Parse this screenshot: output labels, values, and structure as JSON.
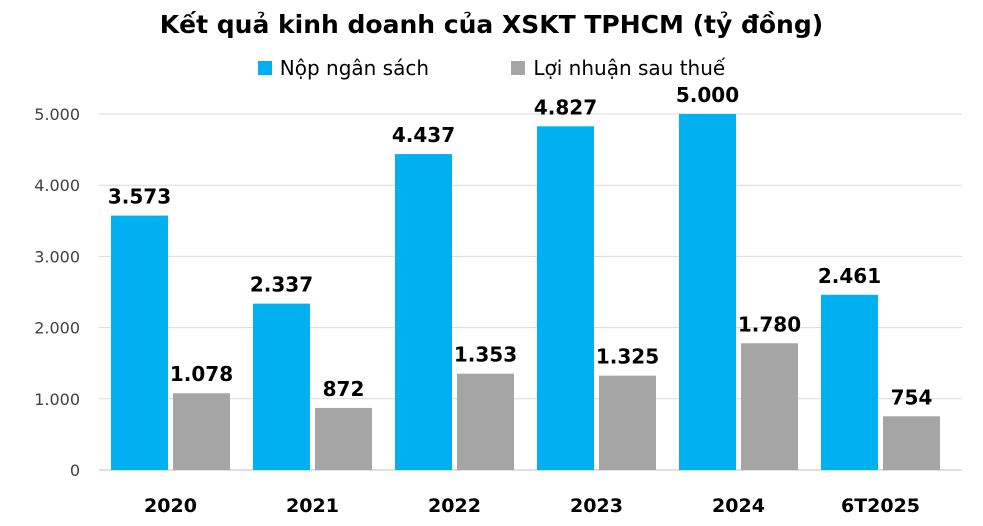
{
  "chart_data": {
    "type": "bar",
    "title": "Kết quả kinh doanh của XSKT TPHCM (tỷ đồng)",
    "categories": [
      "2020",
      "2021",
      "2022",
      "2023",
      "2024",
      "6T2025"
    ],
    "series": [
      {
        "name": "Nộp ngân sách",
        "color": "#00B0F0",
        "values": [
          3573,
          2337,
          4437,
          4827,
          5000,
          2461
        ],
        "labels": [
          "3.573",
          "2.337",
          "4.437",
          "4.827",
          "5.000",
          "2.461"
        ]
      },
      {
        "name": "Lợi nhuận sau thuế",
        "color": "#A5A5A5",
        "values": [
          1078,
          872,
          1353,
          1325,
          1780,
          754
        ],
        "labels": [
          "1.078",
          "872",
          "1.353",
          "1.325",
          "1.780",
          "754"
        ]
      }
    ],
    "ylim": [
      0,
      5000
    ],
    "yticks": [
      0,
      1000,
      2000,
      3000,
      4000,
      5000
    ],
    "ytick_labels": [
      "0",
      "1.000",
      "2.000",
      "3.000",
      "4.000",
      "5.000"
    ],
    "grid": true,
    "legend_position": "top"
  }
}
